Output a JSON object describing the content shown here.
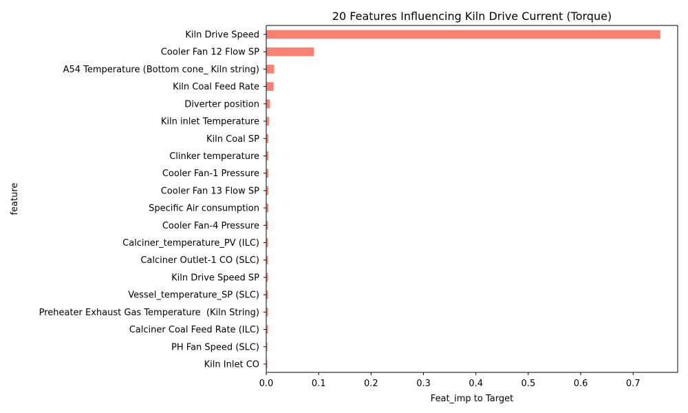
{
  "chart_data": {
    "type": "bar",
    "orientation": "horizontal",
    "title": "20 Features Influencing Kiln Drive Current (Torque)",
    "xlabel": "Feat_imp to Target",
    "ylabel": "feature",
    "xlim": [
      0,
      0.785
    ],
    "xticks": [
      0.0,
      0.1,
      0.2,
      0.3,
      0.4,
      0.5,
      0.6,
      0.7
    ],
    "xtick_labels": [
      "0.0",
      "0.1",
      "0.2",
      "0.3",
      "0.4",
      "0.5",
      "0.6",
      "0.7"
    ],
    "grid": false,
    "bar_color": "#fa8072",
    "categories": [
      "Kiln Drive Speed",
      "Cooler Fan 12 Flow SP",
      "A54 Temperature (Bottom cone_ Kiln string)",
      "Kiln Coal Feed Rate",
      "Diverter position",
      "Kiln inlet Temperature",
      "Kiln Coal SP",
      "Clinker temperature",
      "Cooler Fan-1 Pressure",
      "Cooler Fan 13 Flow SP",
      "Specific Air consumption",
      "Cooler Fan-4 Pressure",
      "Calciner_temperature_PV (ILC)",
      "Calciner Outlet-1 CO (SLC)",
      "Kiln Drive Speed SP",
      "Vessel_temperature_SP (SLC)",
      "Preheater Exhaust Gas Temperature  (Kiln String)",
      "Calciner Coal Feed Rate (ILC)",
      "PH Fan Speed (SLC)",
      "Kiln Inlet CO"
    ],
    "values": [
      0.752,
      0.091,
      0.015,
      0.014,
      0.007,
      0.005,
      0.004,
      0.004,
      0.004,
      0.004,
      0.004,
      0.003,
      0.003,
      0.003,
      0.003,
      0.003,
      0.003,
      0.003,
      0.002,
      0.001
    ]
  }
}
